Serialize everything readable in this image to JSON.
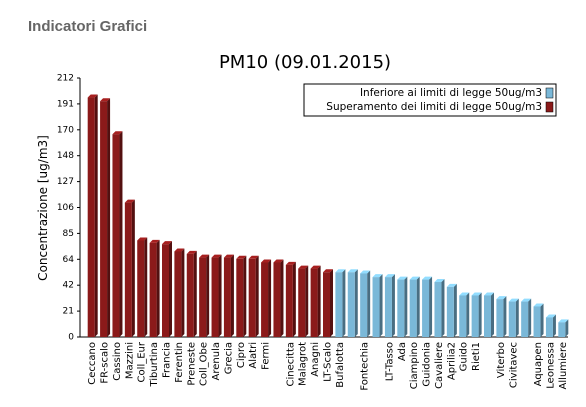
{
  "page_title": "Indicatori Grafici",
  "chart_data": {
    "type": "bar",
    "title": "PM10 (09.01.2015)",
    "y_label": "Concentrazione [ug/m3]",
    "categories": [
      "Ceccano",
      "FR-scalo",
      "Cassino",
      "Mazzini",
      "Coll_Eur",
      "Tiburtina",
      "Francia",
      "Ferentin",
      "Preneste",
      "Coll_Obe",
      "Arenula",
      "Grecia",
      "Cipro",
      "Alatri",
      "Fermi",
      null,
      "Cinecitta",
      "Malagrot",
      "Anagni",
      "LT-Scalo",
      "Bufalotta",
      null,
      "Fontechia",
      null,
      "LT-Tasso",
      "Ada",
      "Ciampino",
      "Guidonia",
      "Cavaliere",
      "Aprilia2",
      "Guido",
      "Rieti1",
      null,
      "Viterbo",
      "Civitavec",
      null,
      "Aquapen",
      "Leonessa",
      "Allumiere"
    ],
    "series": [
      {
        "name": "Inferiore ai limiti di legge 50ug/m3",
        "color": "#7ab8d8",
        "values": [
          null,
          null,
          null,
          null,
          null,
          null,
          null,
          null,
          null,
          null,
          null,
          null,
          null,
          null,
          null,
          null,
          null,
          null,
          null,
          null,
          53,
          53,
          52,
          49,
          49,
          47,
          47,
          47,
          45,
          41,
          34,
          34,
          34,
          31,
          29,
          29,
          25,
          16,
          12
        ]
      },
      {
        "name": "Superamento dei limiti di legge 50ug/m3",
        "color": "#8b1a1a",
        "values": [
          196,
          193,
          166,
          110,
          79,
          77,
          76,
          70,
          68,
          65,
          65,
          65,
          64,
          64,
          61,
          61,
          59,
          56,
          56,
          53,
          null,
          null,
          null,
          null,
          null,
          null,
          null,
          null,
          null,
          null,
          null,
          null,
          null,
          null,
          null,
          null,
          null,
          null,
          null
        ]
      }
    ],
    "ylim": [
      0,
      212
    ],
    "yticks": [
      0,
      {
        "value": 21.2,
        "label": "21"
      },
      {
        "value": 42.4,
        "label": "42"
      },
      {
        "value": 63.6,
        "label": "64"
      },
      {
        "value": 84.8,
        "label": "85"
      },
      106,
      {
        "value": 127.2,
        "label": "127"
      },
      {
        "value": 148.4,
        "label": "148"
      },
      {
        "value": 169.6,
        "label": "170"
      },
      {
        "value": 190.8,
        "label": "191"
      },
      212
    ],
    "grid": false,
    "legend": "top-right"
  }
}
